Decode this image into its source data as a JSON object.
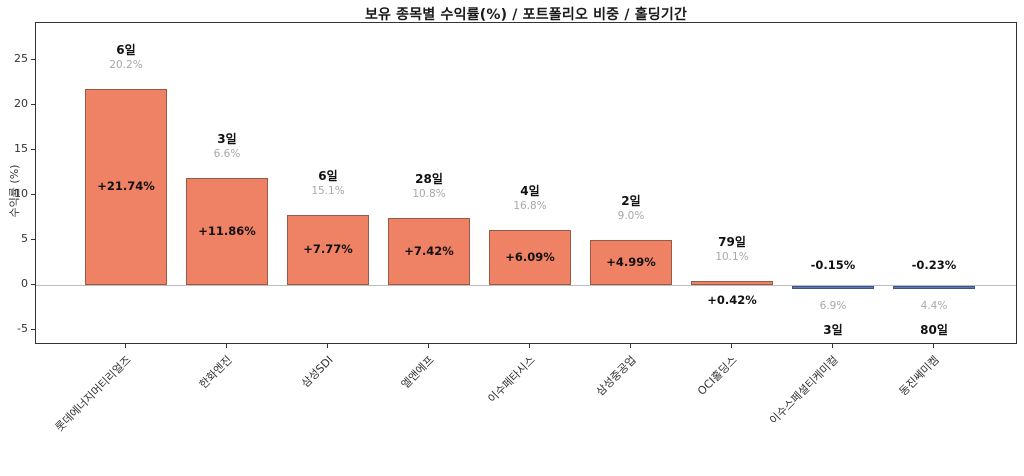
{
  "chart_data": {
    "type": "bar",
    "title": "보유 종목별 수익률(%) / 포트폴리오 비중 / 홀딩기간",
    "ylabel": "수익률 (%)",
    "xlabel": "",
    "yticks": [
      -5,
      0,
      5,
      10,
      15,
      20,
      25
    ],
    "ylim": [
      -6.7,
      29.1
    ],
    "grid": false,
    "legend": "none",
    "categories": [
      "롯데에너지머티리얼즈",
      "한화엔진",
      "삼성SDI",
      "엘앤에프",
      "이수페타시스",
      "삼성중공업",
      "OCI홀딩스",
      "이수스페셜티케미컬",
      "동진쎄미켐"
    ],
    "series": [
      {
        "name": "수익률(%)",
        "values": [
          21.74,
          11.86,
          7.77,
          7.42,
          6.09,
          4.99,
          0.42,
          -0.15,
          -0.23
        ]
      }
    ],
    "stocks": [
      {
        "name": "롯데에너지머티리얼즈",
        "return_pct": 21.74,
        "return_label": "+21.74%",
        "holding_label": "6일",
        "weight_label": "20.2%"
      },
      {
        "name": "한화엔진",
        "return_pct": 11.86,
        "return_label": "+11.86%",
        "holding_label": "3일",
        "weight_label": "6.6%"
      },
      {
        "name": "삼성SDI",
        "return_pct": 7.77,
        "return_label": "+7.77%",
        "holding_label": "6일",
        "weight_label": "15.1%"
      },
      {
        "name": "엘앤에프",
        "return_pct": 7.42,
        "return_label": "+7.42%",
        "holding_label": "28일",
        "weight_label": "10.8%"
      },
      {
        "name": "이수페타시스",
        "return_pct": 6.09,
        "return_label": "+6.09%",
        "holding_label": "4일",
        "weight_label": "16.8%"
      },
      {
        "name": "삼성중공업",
        "return_pct": 4.99,
        "return_label": "+4.99%",
        "holding_label": "2일",
        "weight_label": "9.0%"
      },
      {
        "name": "OCI홀딩스",
        "return_pct": 0.42,
        "return_label": "+0.42%",
        "holding_label": "79일",
        "weight_label": "10.1%"
      },
      {
        "name": "이수스페셜티케미컬",
        "return_pct": -0.15,
        "return_label": "-0.15%",
        "holding_label": "3일",
        "weight_label": "6.9%"
      },
      {
        "name": "동진쎄미켐",
        "return_pct": -0.23,
        "return_label": "-0.23%",
        "holding_label": "80일",
        "weight_label": "4.4%"
      }
    ],
    "colors": {
      "positive_bar": "#EF8164",
      "negative_bar": "#5A78B9",
      "zero_line": "#bdbdbd",
      "axis": "#333333",
      "weight_label": "#a8a8a8",
      "text": "#111111"
    }
  }
}
